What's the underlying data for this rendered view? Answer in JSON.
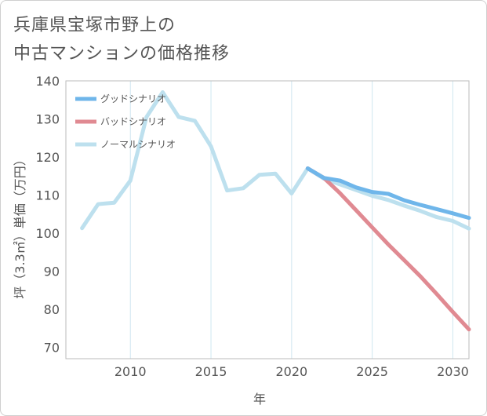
{
  "title_line1": "兵庫県宝塚市野上の",
  "title_line2": "中古マンションの価格推移",
  "chart_data": {
    "type": "line",
    "xlabel": "年",
    "ylabel": "坪（3.3㎡）単価（万円）",
    "xlim": [
      2006,
      2031
    ],
    "ylim": [
      67,
      140
    ],
    "xticks": [
      2010,
      2015,
      2020,
      2025,
      2030
    ],
    "yticks": [
      70,
      80,
      90,
      100,
      110,
      120,
      130,
      140
    ],
    "grid": "vertical",
    "legend_position": "top-left",
    "series": [
      {
        "name": "グッドシナリオ",
        "color": "#6fb6ea",
        "x": [
          2021,
          2022,
          2023,
          2024,
          2025,
          2026,
          2027,
          2028,
          2029,
          2030,
          2031
        ],
        "y": [
          117,
          114.5,
          113.8,
          112,
          110.8,
          110.3,
          108.6,
          107.4,
          106.3,
          105.2,
          104
        ]
      },
      {
        "name": "バッドシナリオ",
        "color": "#e08a92",
        "x": [
          2021,
          2022,
          2023,
          2024,
          2025,
          2026,
          2027,
          2028,
          2029,
          2030,
          2031
        ],
        "y": [
          117,
          114.5,
          110.5,
          106,
          101.5,
          97,
          92.8,
          88.6,
          84,
          79.3,
          74.7
        ]
      },
      {
        "name": "ノーマルシナリオ",
        "color": "#bde0ee",
        "x": [
          2007,
          2008,
          2009,
          2010,
          2011,
          2012,
          2013,
          2014,
          2015,
          2016,
          2017,
          2018,
          2019,
          2020,
          2021,
          2022,
          2023,
          2024,
          2025,
          2026,
          2027,
          2028,
          2029,
          2030,
          2031
        ],
        "y": [
          101.3,
          107.6,
          108,
          113.8,
          130.5,
          137,
          130.5,
          129.5,
          122.8,
          111.2,
          111.8,
          115.3,
          115.6,
          110.4,
          117,
          114.3,
          112.8,
          111.3,
          109.8,
          108.7,
          107.2,
          105.8,
          104.2,
          103.2,
          101.2
        ]
      }
    ]
  }
}
